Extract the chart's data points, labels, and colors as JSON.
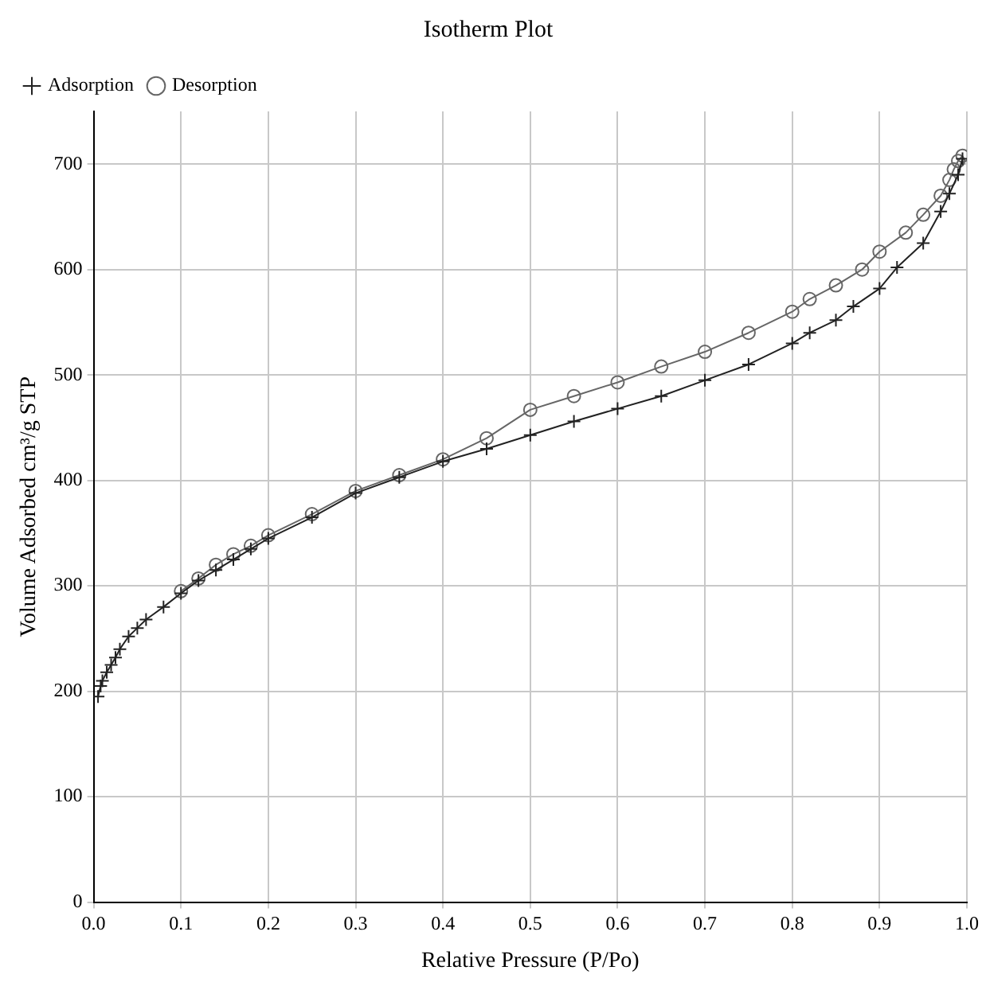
{
  "chart_data": {
    "type": "line",
    "title": "Isotherm Plot",
    "xlabel": "Relative Pressure (P/Po)",
    "ylabel": "Volume Adsorbed cm³/g STP",
    "xlim": [
      0,
      1.0
    ],
    "xticks": [
      {
        "value": 0,
        "label": "0.0"
      },
      0.1,
      0.2,
      0.3,
      0.4,
      0.5,
      0.6,
      0.7,
      0.8,
      0.9,
      {
        "value": 1.0,
        "label": "1.0"
      }
    ],
    "ylim": [
      0,
      750
    ],
    "yticks": [
      0,
      100,
      200,
      300,
      400,
      500,
      600,
      700
    ],
    "grid": true,
    "legend": "top left",
    "line_style": "solid",
    "series": [
      {
        "name": "Adsorption",
        "color": "#222222",
        "marker": "cross",
        "x": [
          0.005,
          0.008,
          0.01,
          0.015,
          0.02,
          0.025,
          0.03,
          0.04,
          0.05,
          0.06,
          0.08,
          0.1,
          0.12,
          0.14,
          0.16,
          0.18,
          0.2,
          0.25,
          0.3,
          0.35,
          0.4,
          0.45,
          0.5,
          0.55,
          0.6,
          0.65,
          0.7,
          0.75,
          0.8,
          0.82,
          0.85,
          0.87,
          0.9,
          0.92,
          0.95,
          0.97,
          0.98,
          0.99,
          0.995
        ],
        "values": [
          195,
          205,
          210,
          218,
          225,
          232,
          240,
          252,
          260,
          268,
          280,
          293,
          305,
          315,
          325,
          335,
          345,
          365,
          388,
          403,
          418,
          430,
          443,
          456,
          468,
          480,
          495,
          510,
          530,
          540,
          552,
          565,
          582,
          602,
          625,
          655,
          672,
          690,
          705
        ]
      },
      {
        "name": "Desorption",
        "color": "#666666",
        "marker": "circle",
        "x": [
          0.995,
          0.99,
          0.985,
          0.98,
          0.97,
          0.95,
          0.93,
          0.9,
          0.88,
          0.85,
          0.82,
          0.8,
          0.75,
          0.7,
          0.65,
          0.6,
          0.55,
          0.5,
          0.45,
          0.4,
          0.35,
          0.3,
          0.25,
          0.2,
          0.18,
          0.16,
          0.14,
          0.12,
          0.1
        ],
        "values": [
          708,
          703,
          695,
          685,
          670,
          652,
          635,
          617,
          600,
          585,
          572,
          560,
          540,
          522,
          508,
          493,
          480,
          467,
          440,
          420,
          405,
          390,
          368,
          348,
          338,
          330,
          320,
          307,
          295
        ]
      }
    ]
  }
}
